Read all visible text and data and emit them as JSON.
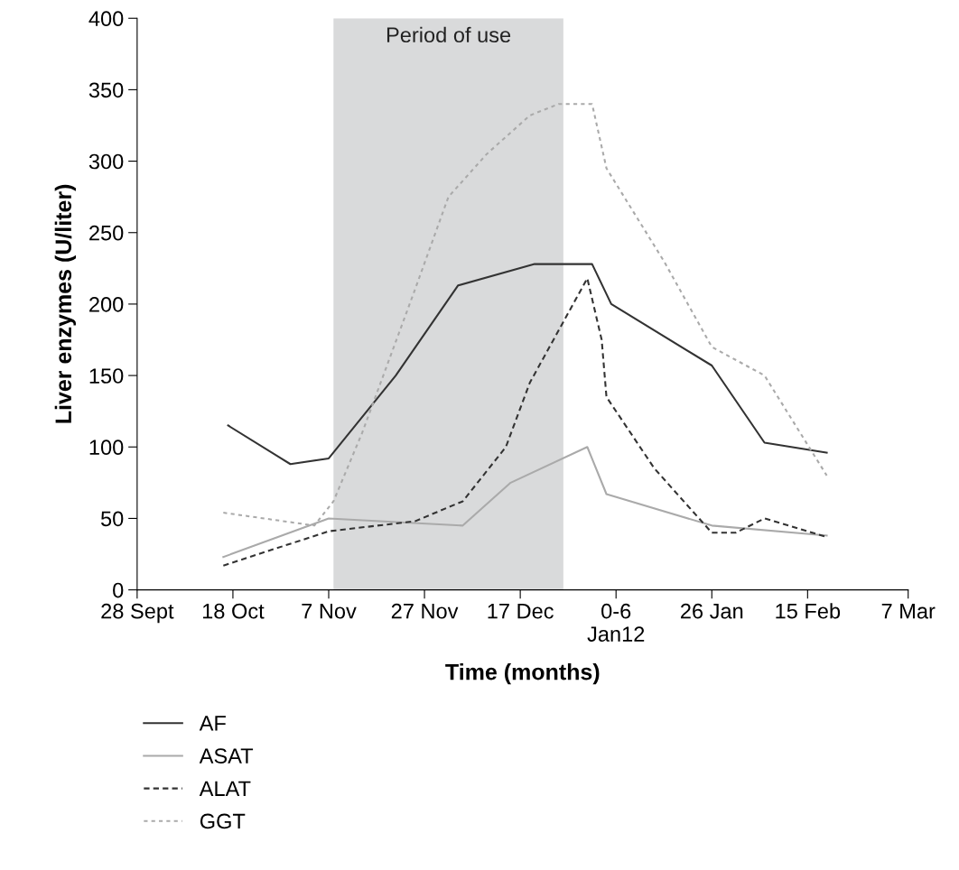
{
  "chart_data": {
    "type": "line",
    "xlabel": "Time (months)",
    "ylabel": "Liver enzymes (U/liter)",
    "xlim": [
      "2011-09-28",
      "2012-03-07"
    ],
    "xticks": [
      {
        "value": "2011-09-28",
        "label": "28 Sept"
      },
      {
        "value": "2011-10-18",
        "label": "18 Oct"
      },
      {
        "value": "2011-11-07",
        "label": "7 Nov"
      },
      {
        "value": "2011-11-27",
        "label": "27 Nov"
      },
      {
        "value": "2011-12-17",
        "label": "17 Dec"
      },
      {
        "value": "2012-01-06",
        "label": "0-6\nJan12"
      },
      {
        "value": "2012-01-26",
        "label": "26 Jan"
      },
      {
        "value": "2012-02-15",
        "label": "15 Feb"
      },
      {
        "value": "2012-03-07",
        "label": "7 Mar"
      }
    ],
    "ylim": [
      0,
      400
    ],
    "yticks": [
      0,
      50,
      100,
      150,
      200,
      250,
      300,
      350,
      400
    ],
    "grid": false,
    "legend": "bottom left",
    "bands": [
      {
        "axis": "x",
        "from": "2011-11-08",
        "to": "2011-12-26",
        "label": "Period of use",
        "color": "#d9dadb"
      }
    ],
    "series": [
      {
        "name": "AF",
        "color": "#333333",
        "line_style": "solid",
        "x": [
          "2011-10-17",
          "2011-10-30",
          "2011-11-07",
          "2011-11-21",
          "2011-12-04",
          "2011-12-20",
          "2012-01-01",
          "2012-01-05",
          "2012-01-26",
          "2012-02-06",
          "2012-02-19"
        ],
        "values": [
          115,
          88,
          92,
          150,
          213,
          228,
          228,
          200,
          157,
          103,
          96
        ]
      },
      {
        "name": "ASAT",
        "color": "#aaaaaa",
        "line_style": "solid",
        "x": [
          "2011-10-16",
          "2011-11-07",
          "2011-12-05",
          "2011-12-15",
          "2011-12-31",
          "2012-01-04",
          "2012-01-26",
          "2012-02-19"
        ],
        "values": [
          23,
          50,
          45,
          75,
          100,
          67,
          45,
          38
        ]
      },
      {
        "name": "ALAT",
        "color": "#333333",
        "line_style": "dashed",
        "x": [
          "2011-10-16",
          "2011-11-07",
          "2011-11-25",
          "2011-12-05",
          "2011-12-14",
          "2011-12-19",
          "2011-12-31",
          "2012-01-03",
          "2012-01-04",
          "2012-01-14",
          "2012-01-26",
          "2012-01-31",
          "2012-02-06",
          "2012-02-19"
        ],
        "values": [
          17,
          41,
          48,
          62,
          100,
          145,
          218,
          175,
          135,
          85,
          40,
          40,
          50,
          37
        ]
      },
      {
        "name": "GGT",
        "color": "#aaaaaa",
        "line_style": "dotted",
        "x": [
          "2011-10-16",
          "2011-11-04",
          "2011-11-08",
          "2011-11-14",
          "2011-11-25",
          "2011-12-02",
          "2011-12-10",
          "2011-12-19",
          "2011-12-25",
          "2012-01-01",
          "2012-01-04",
          "2012-01-16",
          "2012-01-26",
          "2012-02-06",
          "2012-02-19"
        ],
        "values": [
          54,
          45,
          62,
          110,
          210,
          275,
          305,
          332,
          340,
          340,
          295,
          230,
          170,
          150,
          80
        ]
      }
    ]
  }
}
